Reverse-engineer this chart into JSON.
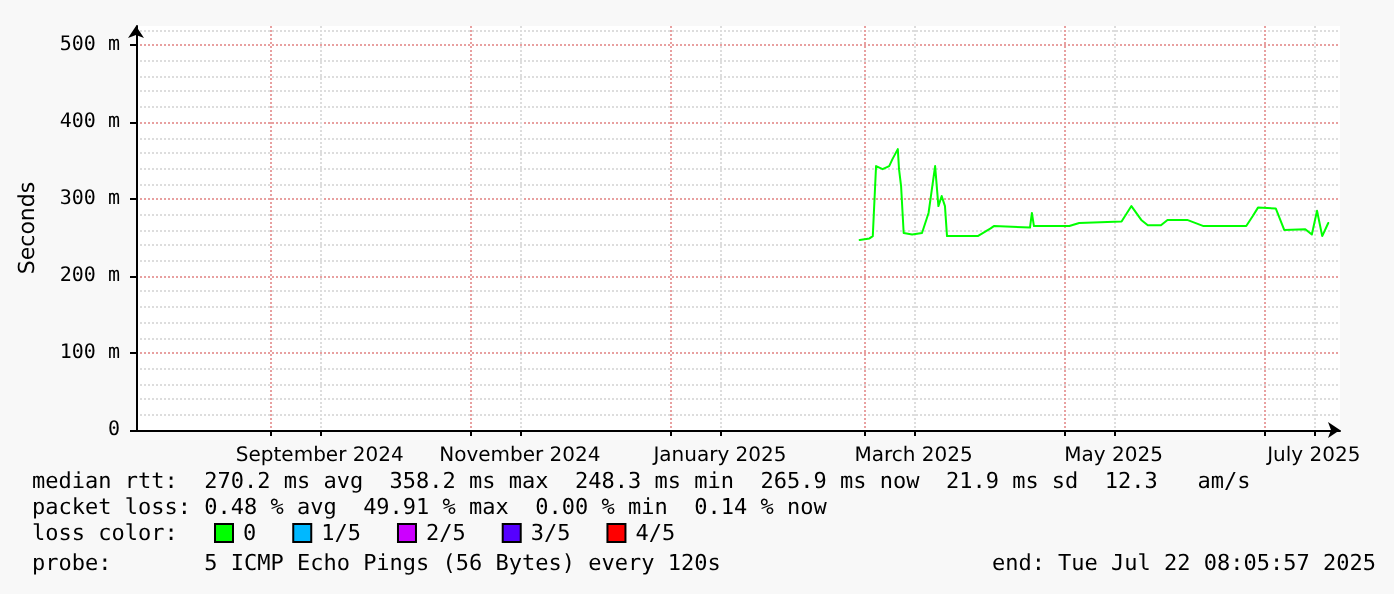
{
  "chart_data": {
    "type": "line",
    "ylabel": "Seconds",
    "legend_title": "loss color:",
    "legend": "bottom left",
    "grid": true,
    "marker": "none",
    "line_style": "solid",
    "x": [
      "2025-02-27T14:00",
      "2025-03-02T14:00",
      "2025-03-03T14:00",
      "2025-03-04T14:00",
      "2025-03-06T14:00",
      "2025-03-08T14:00",
      "2025-03-09T14:00",
      "2025-03-11T05:00",
      "2025-03-11T14:00",
      "2025-03-12T05:00",
      "2025-03-13",
      "2025-03-15T14:00",
      "2025-03-18T14:00",
      "2025-03-20T14:00",
      "2025-03-22T14:00",
      "2025-03-23T14:00",
      "2025-03-24T14:00",
      "2025-03-25T14:00",
      "2025-03-26T05:00",
      "2025-04-04T14:00",
      "2025-04-08T12:00",
      "2025-04-09T12:00",
      "2025-04-20T12:00",
      "2025-04-21T02:00",
      "2025-04-21T17:00",
      "2025-05-02T12:00",
      "2025-05-05T12:00",
      "2025-05-18T10:00",
      "2025-05-21T10:00",
      "2025-05-24T10:00",
      "2025-05-26T10:00",
      "2025-05-30T10:00",
      "2025-06-01T10:00",
      "2025-06-07T10:00",
      "2025-06-12T10:00",
      "2025-06-25T10:00",
      "2025-06-27T10:00",
      "2025-06-29",
      "2025-07-04T10:00",
      "2025-07-07",
      "2025-07-13T10:00",
      "2025-07-15T10:00",
      "2025-07-17",
      "2025-07-18T14:00",
      "2025-07-20T10:00"
    ],
    "series": [
      {
        "name": "0",
        "color": "#00ff00",
        "values": [
          247,
          249,
          252,
          343,
          339,
          343,
          352,
          365,
          339,
          317,
          256,
          254,
          256,
          282,
          343,
          291,
          304,
          291,
          252,
          252,
          262,
          265,
          263,
          282,
          265,
          265,
          269,
          271,
          291,
          273,
          266,
          266,
          273,
          273,
          265,
          265,
          278,
          289,
          288,
          260,
          261,
          254,
          285,
          252,
          269
        ]
      },
      {
        "name": "1/5",
        "color": "#00b8ff",
        "values": [
          null,
          null,
          null,
          null,
          null,
          null,
          null,
          null,
          null,
          null,
          null,
          null,
          null,
          null,
          null,
          null,
          null,
          null,
          null,
          null,
          null,
          null,
          null,
          null,
          null,
          null,
          null,
          null,
          null,
          null,
          null,
          null,
          null,
          null,
          null,
          null,
          null,
          null,
          null,
          null,
          null,
          null,
          null,
          null,
          null
        ]
      },
      {
        "name": "2/5",
        "color": "#cc00ff",
        "values": [
          null,
          null,
          null,
          null,
          null,
          null,
          null,
          null,
          null,
          null,
          null,
          null,
          null,
          null,
          null,
          null,
          null,
          null,
          null,
          null,
          null,
          null,
          null,
          null,
          null,
          null,
          null,
          null,
          null,
          null,
          null,
          null,
          null,
          null,
          null,
          null,
          null,
          null,
          null,
          null,
          null,
          null,
          null,
          null,
          null
        ]
      },
      {
        "name": "3/5",
        "color": "#5500ff",
        "values": [
          null,
          null,
          null,
          null,
          null,
          null,
          null,
          null,
          null,
          null,
          null,
          null,
          null,
          null,
          null,
          null,
          null,
          null,
          null,
          null,
          null,
          null,
          null,
          null,
          null,
          null,
          null,
          null,
          null,
          null,
          null,
          null,
          null,
          null,
          null,
          null,
          null,
          null,
          null,
          null,
          null,
          null,
          null,
          null,
          null
        ]
      },
      {
        "name": "4/5",
        "color": "#ff0000",
        "values": [
          null,
          null,
          null,
          null,
          null,
          null,
          null,
          null,
          null,
          null,
          null,
          null,
          null,
          null,
          null,
          null,
          null,
          null,
          null,
          null,
          null,
          null,
          null,
          null,
          null,
          null,
          null,
          null,
          null,
          null,
          null,
          null,
          null,
          null,
          null,
          null,
          null,
          null,
          null,
          null,
          null,
          null,
          null,
          null,
          null
        ]
      }
    ],
    "xlim": [
      "2024-07-22",
      "2025-07-24"
    ],
    "xticks": [
      {
        "value": "2024-09-01",
        "label": null
      },
      {
        "value": "2024-09-16",
        "label": "September 2024"
      },
      {
        "value": "2024-11-01",
        "label": null
      },
      {
        "value": "2024-11-16",
        "label": "November 2024"
      },
      {
        "value": "2025-01-01",
        "label": null
      },
      {
        "value": "2025-01-16",
        "label": "January 2025"
      },
      {
        "value": "2025-03-01",
        "label": null
      },
      {
        "value": "2025-03-16",
        "label": "March 2025"
      },
      {
        "value": "2025-05-01",
        "label": null
      },
      {
        "value": "2025-05-16",
        "label": "May 2025"
      },
      {
        "value": "2025-07-01",
        "label": null
      },
      {
        "value": "2025-07-16",
        "label": "July 2025"
      }
    ],
    "ylim": [
      0,
      525
    ],
    "yticks": [
      0,
      {
        "value": 100,
        "label": "100 m"
      },
      {
        "value": 200,
        "label": "200 m"
      },
      {
        "value": 300,
        "label": "300 m"
      },
      {
        "value": 400,
        "label": "400 m"
      },
      {
        "value": 500,
        "label": "500 m"
      }
    ],
    "annotations": [
      "median rtt:  270.2 ms avg  358.2 ms max  248.3 ms min  265.9 ms now  21.9 ms sd  12.3   am/s",
      "packet loss: 0.48 % avg  49.91 % max  0.00 % min  0.14 % now",
      "probe:       5 ICMP Echo Pings (56 Bytes) every 120s",
      "end: Tue Jul 22 08:05:57 2025"
    ]
  }
}
